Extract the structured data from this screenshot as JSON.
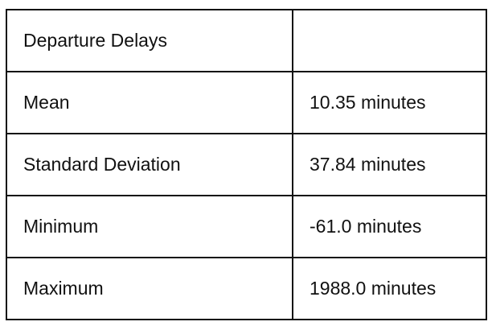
{
  "table": {
    "rows": [
      {
        "label": "Departure Delays",
        "value": ""
      },
      {
        "label": "Mean",
        "value": "10.35 minutes"
      },
      {
        "label": "Standard Deviation",
        "value": "37.84 minutes"
      },
      {
        "label": "Minimum",
        "value": "-61.0 minutes"
      },
      {
        "label": "Maximum",
        "value": "1988.0 minutes"
      }
    ]
  },
  "colors": {
    "border": "#111111",
    "text": "#111111",
    "background": "#ffffff"
  }
}
